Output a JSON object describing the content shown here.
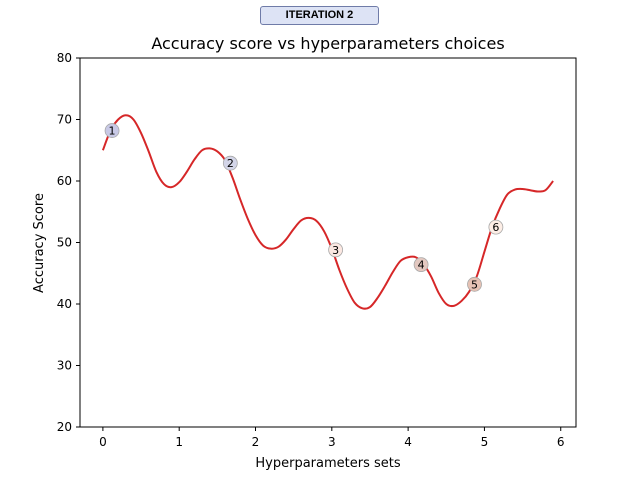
{
  "badge": {
    "label": "ITERATION 2"
  },
  "chart_data": {
    "type": "line",
    "title": "Accuracy score vs hyperparameters choices",
    "xlabel": "Hyperparameters sets",
    "ylabel": "Accuracy Score",
    "xlim": [
      -0.3,
      6.2
    ],
    "ylim": [
      20,
      80
    ],
    "xticks": [
      0,
      1,
      2,
      3,
      4,
      5,
      6
    ],
    "yticks": [
      20,
      30,
      40,
      50,
      60,
      70,
      80
    ],
    "grid": false,
    "line_color": "#d62728",
    "curve": {
      "x": [
        0.0,
        0.1,
        0.2,
        0.3,
        0.4,
        0.5,
        0.6,
        0.7,
        0.8,
        0.9,
        1.0,
        1.1,
        1.2,
        1.3,
        1.4,
        1.5,
        1.6,
        1.7,
        1.8,
        1.9,
        2.0,
        2.1,
        2.2,
        2.3,
        2.4,
        2.5,
        2.6,
        2.7,
        2.8,
        2.9,
        3.0,
        3.1,
        3.2,
        3.3,
        3.4,
        3.5,
        3.6,
        3.7,
        3.8,
        3.9,
        4.0,
        4.1,
        4.2,
        4.3,
        4.4,
        4.5,
        4.6,
        4.7,
        4.8,
        4.9,
        5.0,
        5.1,
        5.2,
        5.3,
        5.4,
        5.5,
        5.6,
        5.7,
        5.8,
        5.9
      ],
      "y": [
        65.0,
        68.2,
        70.0,
        70.7,
        70.0,
        67.8,
        64.8,
        61.5,
        59.5,
        59.0,
        59.8,
        61.5,
        63.5,
        65.0,
        65.3,
        64.8,
        63.4,
        60.5,
        57.0,
        53.8,
        51.2,
        49.5,
        49.0,
        49.3,
        50.5,
        52.2,
        53.6,
        54.0,
        53.5,
        51.8,
        49.0,
        45.5,
        42.5,
        40.2,
        39.3,
        39.5,
        41.0,
        43.0,
        45.2,
        47.0,
        47.6,
        47.6,
        46.5,
        44.5,
        41.8,
        40.0,
        39.7,
        40.5,
        42.0,
        44.5,
        48.5,
        52.5,
        55.5,
        57.8,
        58.6,
        58.7,
        58.5,
        58.3,
        58.5,
        60.0
      ]
    },
    "points": [
      {
        "label": "1",
        "x": 0.12,
        "y": 68.2,
        "color": "#c8c9e6"
      },
      {
        "label": "2",
        "x": 1.67,
        "y": 62.9,
        "color": "#d3d5e8"
      },
      {
        "label": "3",
        "x": 3.05,
        "y": 48.8,
        "color": "#fbe8e2"
      },
      {
        "label": "4",
        "x": 4.17,
        "y": 46.4,
        "color": "#e3c8c0"
      },
      {
        "label": "5",
        "x": 4.87,
        "y": 43.2,
        "color": "#e6c2b4"
      },
      {
        "label": "6",
        "x": 5.15,
        "y": 52.5,
        "color": "#fdeee6"
      }
    ]
  }
}
